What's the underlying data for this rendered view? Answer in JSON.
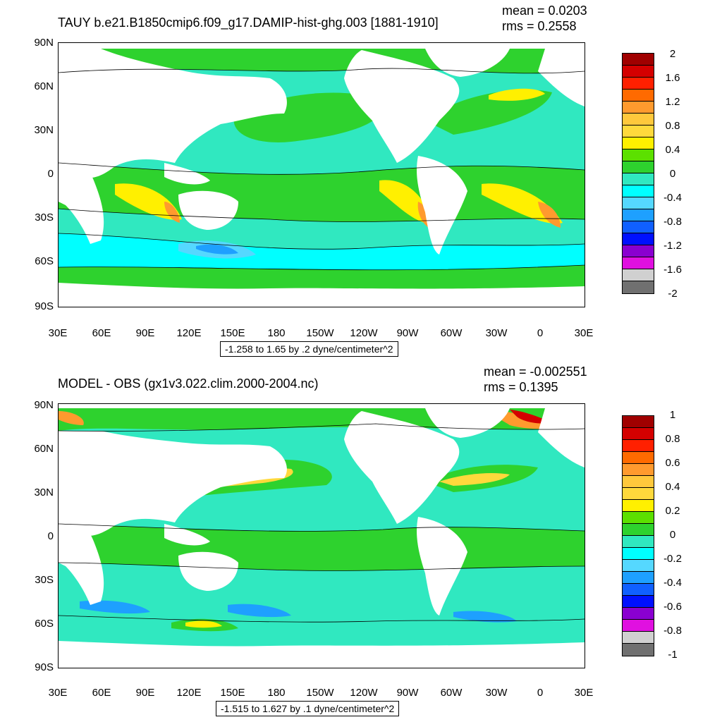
{
  "top": {
    "title": "TAUY b.e21.B1850cmip6.f09_g17.DAMIP-hist-ghg.003 [1881-1910]",
    "mean": "mean = 0.0203",
    "rms": "rms = 0.2558",
    "range_text": "-1.258 to 1.65 by .2 dyne/centimeter^2",
    "lat_labels": [
      "90N",
      "60N",
      "30N",
      "0",
      "30S",
      "60S",
      "90S"
    ],
    "lon_labels": [
      "30E",
      "60E",
      "90E",
      "120E",
      "150E",
      "180",
      "150W",
      "120W",
      "90W",
      "60W",
      "30W",
      "0",
      "30E"
    ],
    "colorbar_labels": [
      "2",
      "1.6",
      "1.2",
      "0.8",
      "0.4",
      "0",
      "-0.4",
      "-0.8",
      "-1.2",
      "-1.6",
      "-2"
    ],
    "colorbar_colors": [
      "#a00000",
      "#d40000",
      "#ff2000",
      "#ff6a00",
      "#ff9a2e",
      "#ffc83c",
      "#ffd93c",
      "#fff000",
      "#5ce000",
      "#2ed22e",
      "#30e8c0",
      "#00ffff",
      "#55d8ff",
      "#1ea0ff",
      "#1060ff",
      "#0010ff",
      "#8a00d0",
      "#e010e0",
      "#d0d0d0",
      "#707070"
    ]
  },
  "bottom": {
    "title": "MODEL - OBS (gx1v3.022.clim.2000-2004.nc)",
    "mean": "mean = -0.002551",
    "rms": "rms = 0.1395",
    "range_text": "-1.515 to 1.627 by .1 dyne/centimeter^2",
    "lat_labels": [
      "90N",
      "60N",
      "30N",
      "0",
      "30S",
      "60S",
      "90S"
    ],
    "lon_labels": [
      "30E",
      "60E",
      "90E",
      "120E",
      "150E",
      "180",
      "150W",
      "120W",
      "90W",
      "60W",
      "30W",
      "0",
      "30E"
    ],
    "colorbar_labels": [
      "1",
      "0.8",
      "0.6",
      "0.4",
      "0.2",
      "0",
      "-0.2",
      "-0.4",
      "-0.6",
      "-0.8",
      "-1"
    ],
    "colorbar_colors": [
      "#a00000",
      "#d40000",
      "#ff2000",
      "#ff6a00",
      "#ff9a2e",
      "#ffc83c",
      "#ffd93c",
      "#fff000",
      "#5ce000",
      "#2ed22e",
      "#30e8c0",
      "#00ffff",
      "#55d8ff",
      "#1ea0ff",
      "#1060ff",
      "#0010ff",
      "#8a00d0",
      "#e010e0",
      "#d0d0d0",
      "#707070"
    ]
  }
}
